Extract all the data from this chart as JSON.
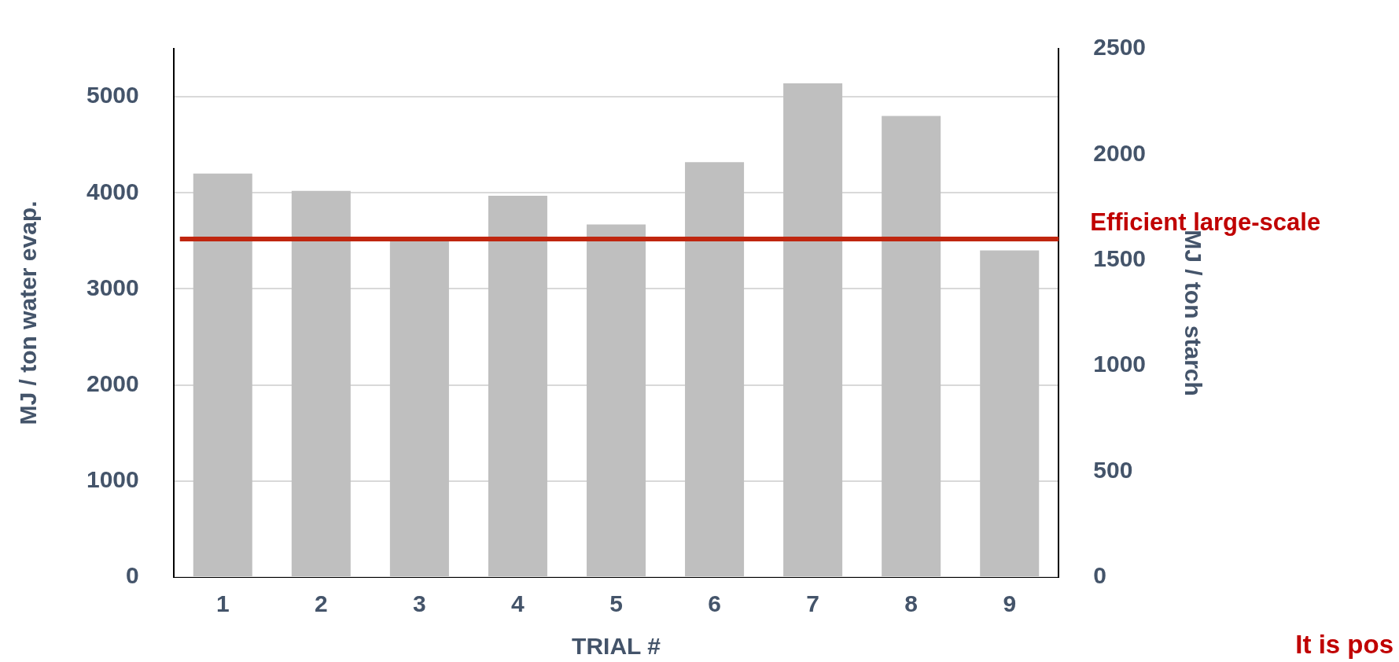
{
  "chart_data": {
    "type": "bar",
    "xlabel": "TRIAL #",
    "ylabel": "MJ / ton water evap.",
    "y2label": "MJ / ton starch",
    "categories": [
      "1",
      "2",
      "3",
      "4",
      "5",
      "6",
      "7",
      "8",
      "9"
    ],
    "series": [
      {
        "color": "#bfbfbf",
        "values": [
          4200,
          4020,
          3500,
          3970,
          3670,
          4320,
          5140,
          4800,
          3400
        ]
      }
    ],
    "ylim": [
      0,
      5500
    ],
    "yticks": [
      0,
      1000,
      2000,
      3000,
      4000,
      5000
    ],
    "y2lim": [
      0,
      2500
    ],
    "y2ticks": [
      0,
      500,
      1000,
      1500,
      2000,
      2500
    ],
    "ref_lines": [
      {
        "axis": "y2",
        "value": 1600,
        "label": "Efficient large-scale",
        "color": "#c0260f"
      }
    ],
    "annotations": [
      "It is pos"
    ],
    "grid": "y",
    "legend": false
  }
}
